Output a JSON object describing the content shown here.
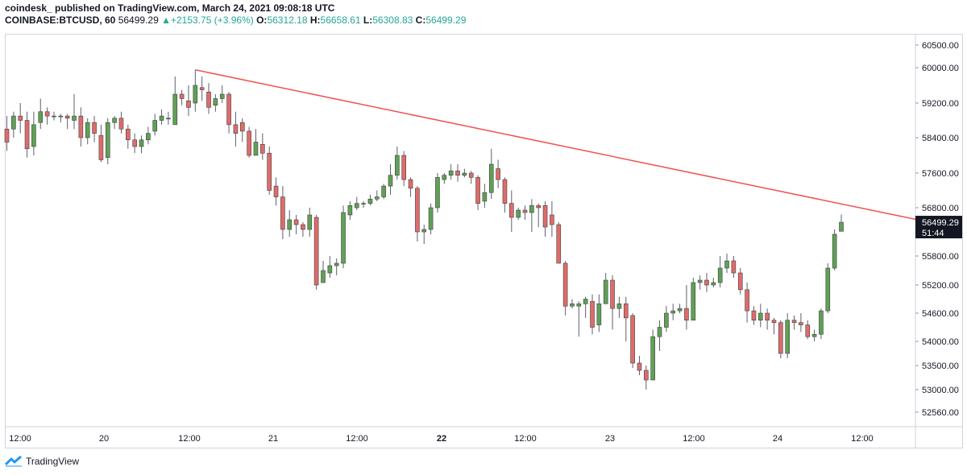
{
  "header": {
    "publisher_line": "coindesk_ published on TradingView.com, March 24, 2021 09:08:18 UTC",
    "symbol": "COINBASE:BTCUSD, 60",
    "price": "56499.29",
    "change_arrow": "▲",
    "change": "+2153.75 (+3.96%)",
    "o_label": "O:",
    "o_value": "56312.18",
    "h_label": "H:",
    "h_value": "56658.61",
    "l_label": "L:",
    "l_value": "56308.83",
    "c_label": "C:",
    "c_value": "56499.29"
  },
  "price_tag": {
    "price": "56499.29",
    "countdown": "51:44"
  },
  "footer": {
    "brand": "TradingView",
    "brand_icon": "tradingview-logo-icon"
  },
  "colors": {
    "up": "#26a69a",
    "up_body": "#5fa155",
    "down_body": "#df6b6b",
    "trendline": "#ef5350",
    "text": "#131722"
  },
  "chart_data": {
    "type": "candlestick",
    "symbol": "COINBASE:BTCUSD",
    "interval": "60",
    "x_tick_labels": [
      "12:00",
      "20",
      "12:00",
      "21",
      "12:00",
      "22",
      "12:00",
      "23",
      "12:00",
      "24",
      "12:00"
    ],
    "y_tick_labels": [
      "60500.00",
      "60000.00",
      "59200.00",
      "58400.00",
      "57600.00",
      "56800.00",
      "56499.29",
      "55800.00",
      "55200.00",
      "54600.00",
      "54000.00",
      "53500.00",
      "53000.00",
      "52560.00"
    ],
    "y_ticks": [
      60500,
      60000,
      59200,
      58400,
      57600,
      56800,
      55800,
      55200,
      54600,
      54000,
      53500,
      53000,
      52560
    ],
    "trendline": {
      "from_high": 59950,
      "to_value": 56560
    },
    "candles": [
      [
        58600,
        58300,
        58900,
        58100
      ],
      [
        58600,
        58900,
        59000,
        58400
      ],
      [
        58900,
        58800,
        59200,
        58500
      ],
      [
        58800,
        58150,
        59000,
        57950
      ],
      [
        58200,
        58700,
        59000,
        58000
      ],
      [
        58750,
        59000,
        59300,
        58600
      ],
      [
        59000,
        58900,
        59100,
        58700
      ],
      [
        58900,
        58900,
        59000,
        58800
      ],
      [
        58900,
        58900,
        58950,
        58750
      ],
      [
        58900,
        58850,
        58950,
        58600
      ],
      [
        58800,
        58900,
        59400,
        58600
      ],
      [
        58900,
        58400,
        59100,
        58200
      ],
      [
        58400,
        58750,
        58850,
        58250
      ],
      [
        58750,
        58500,
        58900,
        58300
      ],
      [
        58450,
        57900,
        58700,
        57850
      ],
      [
        57950,
        58750,
        58850,
        57800
      ],
      [
        58750,
        58850,
        58900,
        58600
      ],
      [
        58850,
        58600,
        59000,
        58500
      ],
      [
        58600,
        58350,
        58700,
        58150
      ],
      [
        58350,
        58200,
        58500,
        58050
      ],
      [
        58200,
        58350,
        58450,
        58050
      ],
      [
        58350,
        58500,
        58650,
        58250
      ],
      [
        58550,
        58800,
        58950,
        58450
      ],
      [
        58800,
        58900,
        59050,
        58700
      ],
      [
        58850,
        58850,
        59000,
        58700
      ],
      [
        58700,
        59400,
        59800,
        58800
      ],
      [
        59400,
        59300,
        59500,
        59150
      ],
      [
        59250,
        59100,
        59600,
        58900
      ],
      [
        59200,
        59600,
        59950,
        59000
      ],
      [
        59550,
        59500,
        59800,
        59250
      ],
      [
        59450,
        59100,
        59650,
        58950
      ],
      [
        59150,
        59300,
        59400,
        59000
      ],
      [
        59300,
        59400,
        59600,
        59200
      ],
      [
        59400,
        58700,
        59450,
        58500
      ],
      [
        58700,
        58500,
        59000,
        58200
      ],
      [
        58750,
        58550,
        58850,
        58300
      ],
      [
        58550,
        58000,
        58650,
        57950
      ],
      [
        58000,
        58300,
        58600,
        58150
      ],
      [
        58250,
        58050,
        58500,
        57900
      ],
      [
        58050,
        57200,
        58200,
        57100
      ],
      [
        57300,
        57050,
        57500,
        56850
      ],
      [
        57050,
        56350,
        57300,
        56150
      ],
      [
        56350,
        56550,
        56750,
        56200
      ],
      [
        56550,
        56450,
        56650,
        56250
      ],
      [
        56450,
        56350,
        56500,
        56200
      ],
      [
        56350,
        56650,
        56800,
        56200
      ],
      [
        56600,
        55200,
        56650,
        55100
      ],
      [
        55250,
        55500,
        55700,
        55300
      ],
      [
        55450,
        55600,
        55800,
        55350
      ],
      [
        55600,
        55650,
        55750,
        55400
      ],
      [
        55650,
        56700,
        56850,
        55550
      ],
      [
        56650,
        56850,
        56950,
        56550
      ],
      [
        56800,
        56900,
        57050,
        56750
      ],
      [
        56900,
        56900,
        56950,
        56800
      ],
      [
        56900,
        57000,
        57100,
        56850
      ],
      [
        57000,
        57050,
        57200,
        56950
      ],
      [
        57050,
        57300,
        57350,
        57000
      ],
      [
        57300,
        57550,
        57800,
        57100
      ],
      [
        57550,
        58000,
        58200,
        57450
      ],
      [
        58000,
        57450,
        58100,
        57300
      ],
      [
        57450,
        57250,
        57500,
        57050
      ],
      [
        57250,
        56300,
        57300,
        56100
      ],
      [
        56300,
        56350,
        56450,
        56050
      ],
      [
        56350,
        56800,
        56900,
        56250
      ],
      [
        56800,
        57500,
        57600,
        56700
      ],
      [
        57450,
        57550,
        57600,
        57350
      ],
      [
        57550,
        57650,
        57800,
        57450
      ],
      [
        57650,
        57550,
        57800,
        57400
      ],
      [
        57550,
        57600,
        57700,
        57500
      ],
      [
        57600,
        57500,
        57650,
        57350
      ],
      [
        57500,
        56900,
        57550,
        56750
      ],
      [
        56950,
        57150,
        57350,
        56800
      ],
      [
        57150,
        57800,
        58150,
        57000
      ],
      [
        57700,
        57450,
        57900,
        57250
      ],
      [
        57450,
        56900,
        57500,
        56700
      ],
      [
        56900,
        56600,
        57200,
        56300
      ],
      [
        56600,
        56750,
        56800,
        56550
      ],
      [
        56750,
        56700,
        56850,
        56550
      ],
      [
        56700,
        56850,
        57000,
        56300
      ],
      [
        56850,
        56800,
        56900,
        56400
      ],
      [
        56850,
        56400,
        56950,
        56200
      ],
      [
        56650,
        56450,
        56950,
        56200
      ],
      [
        56450,
        55650,
        56500,
        56150
      ],
      [
        55650,
        54750,
        55700,
        54550
      ],
      [
        54750,
        54800,
        54900,
        54700
      ],
      [
        54750,
        54800,
        54850,
        54100
      ],
      [
        54800,
        54900,
        54950,
        54500
      ],
      [
        54850,
        54300,
        55000,
        54150
      ],
      [
        54350,
        54800,
        55000,
        54200
      ],
      [
        54800,
        55300,
        55450,
        54800
      ],
      [
        55300,
        54700,
        55400,
        54250
      ],
      [
        54700,
        54800,
        54950,
        54500
      ],
      [
        54800,
        54500,
        54950,
        54000
      ],
      [
        54550,
        53550,
        54600,
        53450
      ],
      [
        53550,
        53400,
        53700,
        53300
      ],
      [
        53400,
        53200,
        53500,
        53000
      ],
      [
        53200,
        54100,
        54250,
        53300
      ],
      [
        54100,
        54300,
        54450,
        53800
      ],
      [
        54300,
        54600,
        54750,
        54200
      ],
      [
        54600,
        54650,
        54800,
        54450
      ],
      [
        54650,
        54700,
        54800,
        54600
      ],
      [
        54700,
        54450,
        55200,
        54250
      ],
      [
        54450,
        55250,
        55350,
        54800
      ],
      [
        55250,
        55300,
        55400,
        55100
      ],
      [
        55300,
        55200,
        55450,
        55050
      ],
      [
        55200,
        55250,
        55350,
        55150
      ],
      [
        55250,
        55550,
        55800,
        55150
      ],
      [
        55550,
        55700,
        55850,
        55450
      ],
      [
        55700,
        55450,
        55800,
        55350
      ],
      [
        55450,
        55100,
        55550,
        55000
      ],
      [
        55100,
        54650,
        55250,
        54400
      ],
      [
        54650,
        54450,
        54750,
        54350
      ],
      [
        54450,
        54600,
        54800,
        54300
      ],
      [
        54600,
        54450,
        54700,
        54250
      ],
      [
        54450,
        54400,
        54500,
        54150
      ],
      [
        54400,
        53750,
        54450,
        53650
      ],
      [
        53750,
        54450,
        54600,
        53650
      ],
      [
        54450,
        54400,
        54550,
        54250
      ],
      [
        54400,
        54350,
        54600,
        54200
      ],
      [
        54350,
        54100,
        54450,
        54050
      ],
      [
        54100,
        54150,
        54250,
        54000
      ],
      [
        54150,
        54650,
        54700,
        54050
      ],
      [
        54650,
        55550,
        55650,
        54600
      ],
      [
        55550,
        56250,
        56350,
        55500
      ],
      [
        56312,
        56499,
        56658,
        56308
      ]
    ]
  }
}
